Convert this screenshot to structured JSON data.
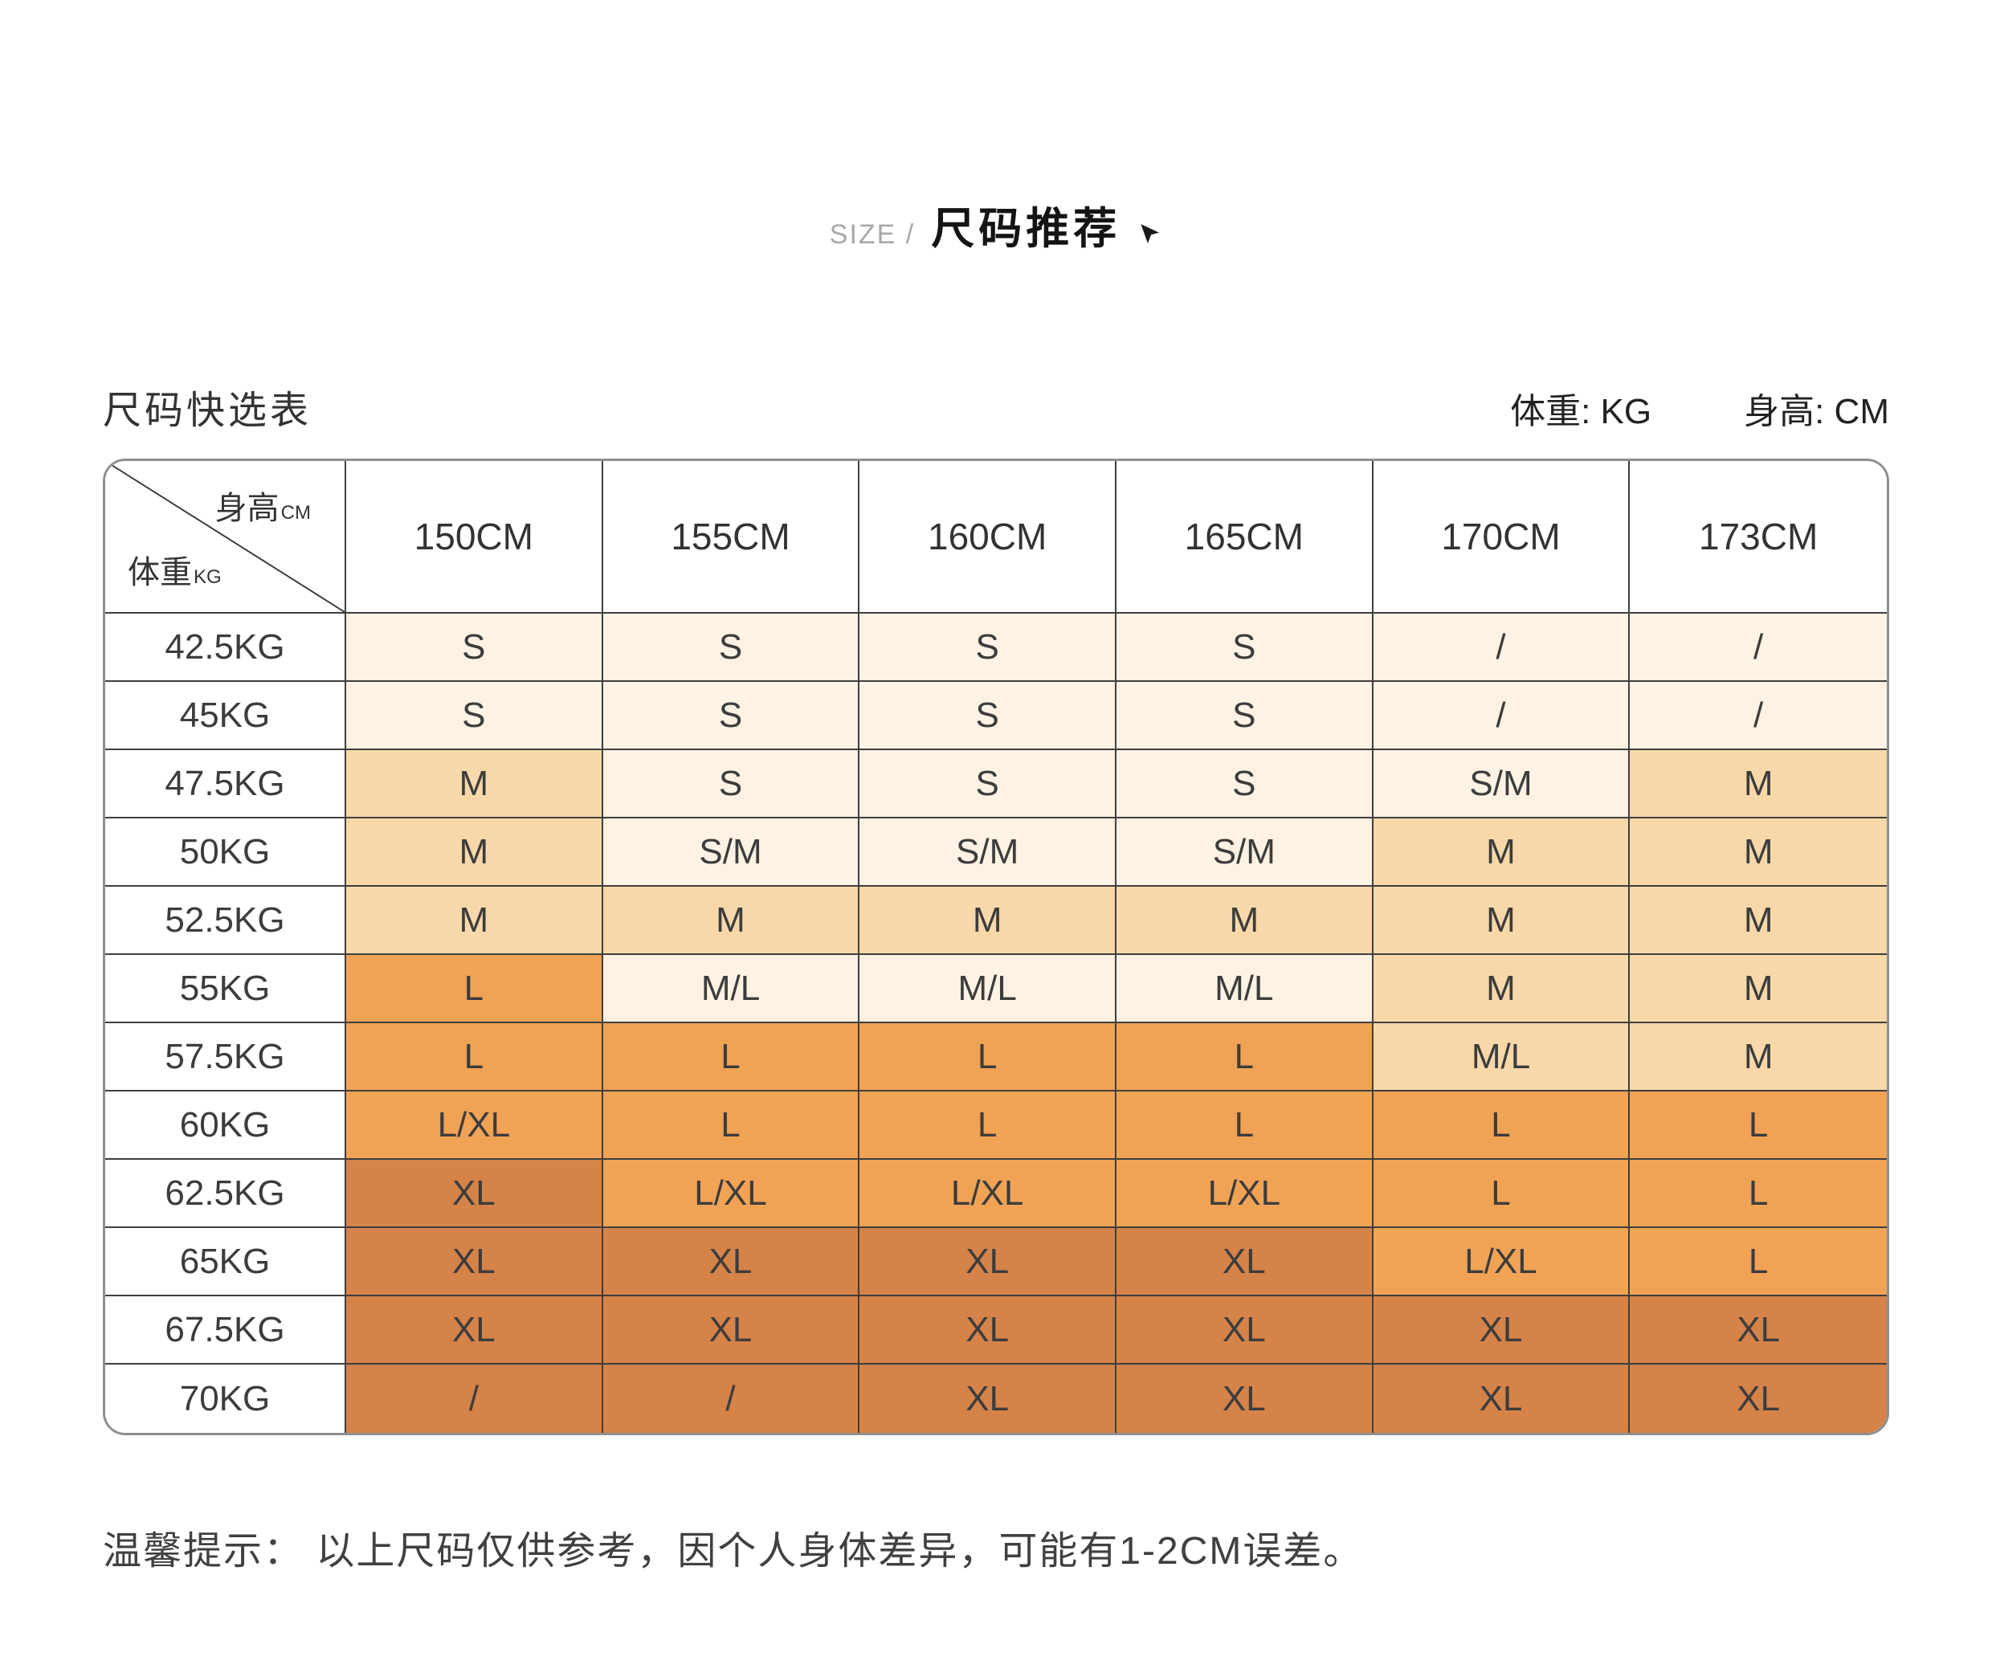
{
  "page": {
    "header": {
      "size_label": "SIZE /",
      "title": "尺码推荐"
    },
    "section": {
      "table_title": "尺码快选表",
      "weight_unit_label": "体重: KG",
      "height_unit_label": "身高: CM"
    },
    "tip": "温馨提示： 以上尺码仅供参考，因个人身体差异，可能有1-2CM误差。"
  },
  "chart_data": {
    "type": "table",
    "title": "尺码快选表",
    "corner": {
      "height_label": "身高",
      "height_unit": "CM",
      "weight_label": "体重",
      "weight_unit": "KG"
    },
    "columns": [
      "150CM",
      "155CM",
      "160CM",
      "165CM",
      "170CM",
      "173CM"
    ],
    "colors": {
      "cream": "#fdf2e3",
      "peach": "#f8d8a9",
      "orange": "#f1a355",
      "brown": "#d58349"
    },
    "rows": [
      {
        "weight": "42.5KG",
        "cells": [
          {
            "v": "S",
            "c": "cream"
          },
          {
            "v": "S",
            "c": "cream"
          },
          {
            "v": "S",
            "c": "cream"
          },
          {
            "v": "S",
            "c": "cream"
          },
          {
            "v": "/",
            "c": "cream"
          },
          {
            "v": "/",
            "c": "cream"
          }
        ]
      },
      {
        "weight": "45KG",
        "cells": [
          {
            "v": "S",
            "c": "cream"
          },
          {
            "v": "S",
            "c": "cream"
          },
          {
            "v": "S",
            "c": "cream"
          },
          {
            "v": "S",
            "c": "cream"
          },
          {
            "v": "/",
            "c": "cream"
          },
          {
            "v": "/",
            "c": "cream"
          }
        ]
      },
      {
        "weight": "47.5KG",
        "cells": [
          {
            "v": "M",
            "c": "peach"
          },
          {
            "v": "S",
            "c": "cream"
          },
          {
            "v": "S",
            "c": "cream"
          },
          {
            "v": "S",
            "c": "cream"
          },
          {
            "v": "S/M",
            "c": "cream"
          },
          {
            "v": "M",
            "c": "peach"
          }
        ]
      },
      {
        "weight": "50KG",
        "cells": [
          {
            "v": "M",
            "c": "peach"
          },
          {
            "v": "S/M",
            "c": "cream"
          },
          {
            "v": "S/M",
            "c": "cream"
          },
          {
            "v": "S/M",
            "c": "cream"
          },
          {
            "v": "M",
            "c": "peach"
          },
          {
            "v": "M",
            "c": "peach"
          }
        ]
      },
      {
        "weight": "52.5KG",
        "cells": [
          {
            "v": "M",
            "c": "peach"
          },
          {
            "v": "M",
            "c": "peach"
          },
          {
            "v": "M",
            "c": "peach"
          },
          {
            "v": "M",
            "c": "peach"
          },
          {
            "v": "M",
            "c": "peach"
          },
          {
            "v": "M",
            "c": "peach"
          }
        ]
      },
      {
        "weight": "55KG",
        "cells": [
          {
            "v": "L",
            "c": "orange"
          },
          {
            "v": "M/L",
            "c": "cream"
          },
          {
            "v": "M/L",
            "c": "cream"
          },
          {
            "v": "M/L",
            "c": "cream"
          },
          {
            "v": "M",
            "c": "peach"
          },
          {
            "v": "M",
            "c": "peach"
          }
        ]
      },
      {
        "weight": "57.5KG",
        "cells": [
          {
            "v": "L",
            "c": "orange"
          },
          {
            "v": "L",
            "c": "orange"
          },
          {
            "v": "L",
            "c": "orange"
          },
          {
            "v": "L",
            "c": "orange"
          },
          {
            "v": "M/L",
            "c": "peach"
          },
          {
            "v": "M",
            "c": "peach"
          }
        ]
      },
      {
        "weight": "60KG",
        "cells": [
          {
            "v": "L/XL",
            "c": "orange"
          },
          {
            "v": "L",
            "c": "orange"
          },
          {
            "v": "L",
            "c": "orange"
          },
          {
            "v": "L",
            "c": "orange"
          },
          {
            "v": "L",
            "c": "orange"
          },
          {
            "v": "L",
            "c": "orange"
          }
        ]
      },
      {
        "weight": "62.5KG",
        "cells": [
          {
            "v": "XL",
            "c": "brown"
          },
          {
            "v": "L/XL",
            "c": "orange"
          },
          {
            "v": "L/XL",
            "c": "orange"
          },
          {
            "v": "L/XL",
            "c": "orange"
          },
          {
            "v": "L",
            "c": "orange"
          },
          {
            "v": "L",
            "c": "orange"
          }
        ]
      },
      {
        "weight": "65KG",
        "cells": [
          {
            "v": "XL",
            "c": "brown"
          },
          {
            "v": "XL",
            "c": "brown"
          },
          {
            "v": "XL",
            "c": "brown"
          },
          {
            "v": "XL",
            "c": "brown"
          },
          {
            "v": "L/XL",
            "c": "orange"
          },
          {
            "v": "L",
            "c": "orange"
          }
        ]
      },
      {
        "weight": "67.5KG",
        "cells": [
          {
            "v": "XL",
            "c": "brown"
          },
          {
            "v": "XL",
            "c": "brown"
          },
          {
            "v": "XL",
            "c": "brown"
          },
          {
            "v": "XL",
            "c": "brown"
          },
          {
            "v": "XL",
            "c": "brown"
          },
          {
            "v": "XL",
            "c": "brown"
          }
        ]
      },
      {
        "weight": "70KG",
        "cells": [
          {
            "v": "/",
            "c": "brown"
          },
          {
            "v": "/",
            "c": "brown"
          },
          {
            "v": "XL",
            "c": "brown"
          },
          {
            "v": "XL",
            "c": "brown"
          },
          {
            "v": "XL",
            "c": "brown"
          },
          {
            "v": "XL",
            "c": "brown"
          }
        ]
      }
    ]
  }
}
